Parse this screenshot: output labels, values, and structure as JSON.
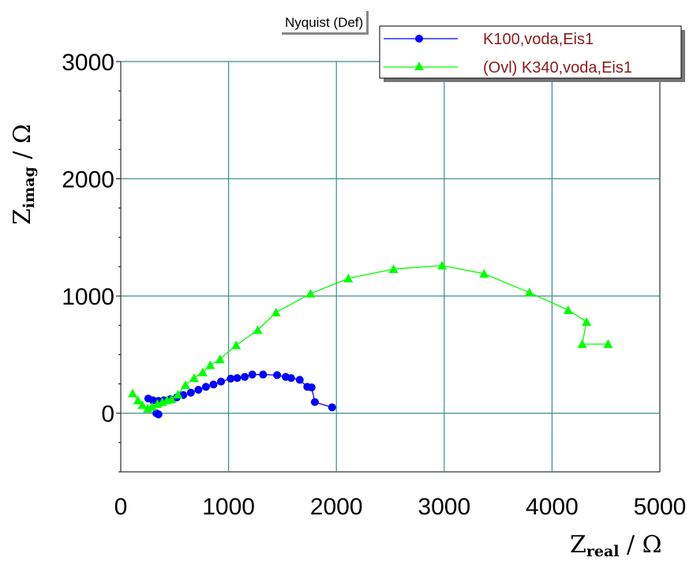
{
  "window": {
    "tab_label": "Nyquist (Def)"
  },
  "chart_data": {
    "type": "scatter",
    "xlabel_main": "Z",
    "xlabel_sub": "real",
    "xlabel_unit": " / Ω",
    "ylabel_main": "Z",
    "ylabel_sub": "imag",
    "ylabel_unit": " / Ω",
    "xlim": [
      0,
      5000
    ],
    "ylim": [
      -500,
      3000
    ],
    "xticks": [
      0,
      1000,
      2000,
      3000,
      4000,
      5000
    ],
    "yticks": [
      0,
      1000,
      2000,
      3000
    ],
    "grid": true,
    "legend_position": "top-right",
    "series": [
      {
        "name": "K100,voda,Eis1",
        "color": "#0000ff",
        "marker": "circle",
        "points": [
          [
            1960,
            50
          ],
          [
            1800,
            95
          ],
          [
            1770,
            220
          ],
          [
            1730,
            225
          ],
          [
            1660,
            285
          ],
          [
            1580,
            300
          ],
          [
            1530,
            310
          ],
          [
            1450,
            325
          ],
          [
            1320,
            330
          ],
          [
            1220,
            330
          ],
          [
            1150,
            310
          ],
          [
            1080,
            300
          ],
          [
            1020,
            295
          ],
          [
            930,
            270
          ],
          [
            860,
            245
          ],
          [
            790,
            225
          ],
          [
            720,
            200
          ],
          [
            650,
            175
          ],
          [
            580,
            155
          ],
          [
            520,
            135
          ],
          [
            460,
            120
          ],
          [
            400,
            110
          ],
          [
            350,
            105
          ],
          [
            300,
            110
          ],
          [
            255,
            125
          ],
          [
            330,
            0
          ],
          [
            350,
            -10
          ]
        ]
      },
      {
        "name": "(Ovl) K340,voda,Eis1",
        "color": "#00ff00",
        "marker": "triangle",
        "points": [
          [
            4520,
            590
          ],
          [
            4280,
            590
          ],
          [
            4320,
            780
          ],
          [
            4150,
            880
          ],
          [
            3790,
            1030
          ],
          [
            3370,
            1190
          ],
          [
            2980,
            1260
          ],
          [
            2530,
            1230
          ],
          [
            2110,
            1150
          ],
          [
            1760,
            1020
          ],
          [
            1440,
            860
          ],
          [
            1270,
            710
          ],
          [
            1070,
            580
          ],
          [
            920,
            460
          ],
          [
            830,
            410
          ],
          [
            760,
            350
          ],
          [
            680,
            300
          ],
          [
            600,
            240
          ],
          [
            530,
            160
          ],
          [
            470,
            120
          ],
          [
            430,
            110
          ],
          [
            385,
            95
          ],
          [
            340,
            80
          ],
          [
            290,
            55
          ],
          [
            250,
            40
          ],
          [
            200,
            70
          ],
          [
            160,
            110
          ],
          [
            110,
            170
          ]
        ]
      }
    ]
  }
}
